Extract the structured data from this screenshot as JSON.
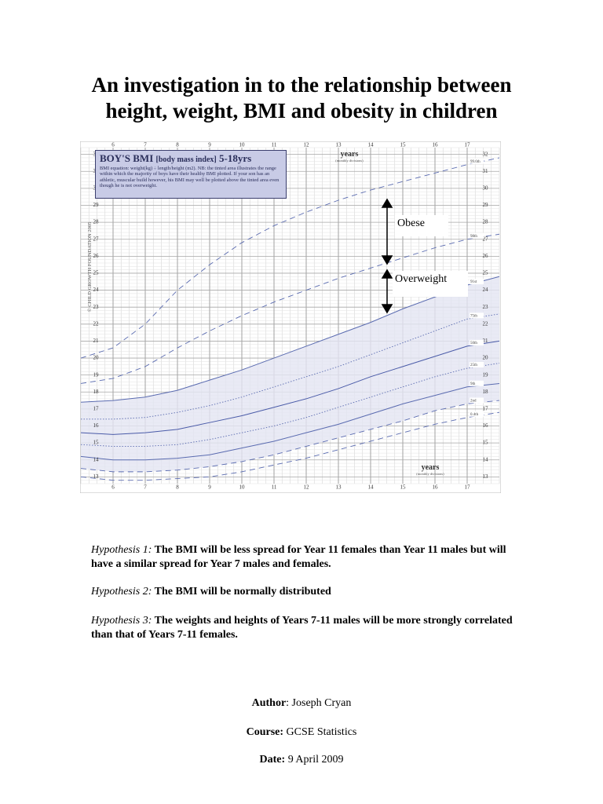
{
  "header": {
    "title": [
      "An investigation in to the relationship between",
      "height, weight, BMI and obesity in children"
    ]
  },
  "chart_data": {
    "type": "line",
    "info_title": "BOY'S BMI",
    "info_title_small": "[body mass index]",
    "info_title_range": "5-18yrs",
    "info_text": "BMI equation: weight(kg) ÷ length/height (m2). NB: the tinted area illustrates the range within which the majority of boys have their healthy BMI plotted. If your son has an athletic, muscular build however, his BMI may well be plotted above the tinted area even though he is not overweight.",
    "copyright": "© CHILD GROWTH FOUNDATION 2005",
    "xlabel": "years",
    "xlabel_note": "(monthly divisions)",
    "x": [
      5,
      6,
      7,
      8,
      9,
      10,
      11,
      12,
      13,
      14,
      15,
      16,
      17,
      18
    ],
    "xlim": [
      5,
      18
    ],
    "xticks": [
      6,
      7,
      8,
      9,
      10,
      11,
      12,
      13,
      14,
      15,
      16,
      17
    ],
    "ylim": [
      12.6,
      32.4
    ],
    "yticks": [
      13,
      14,
      15,
      16,
      17,
      18,
      19,
      20,
      21,
      22,
      23,
      24,
      25,
      26,
      27,
      28,
      29,
      30,
      31,
      32
    ],
    "grid": true,
    "shade_between": [
      "2nd",
      "91st"
    ],
    "shade_color": "#e3e5f3",
    "series": [
      {
        "name": "99.6th",
        "color": "#5a6bb0",
        "style": "dashed",
        "values": [
          20.0,
          20.6,
          22.0,
          24.0,
          25.5,
          26.8,
          27.8,
          28.6,
          29.3,
          29.9,
          30.4,
          30.9,
          31.4,
          31.8
        ]
      },
      {
        "name": "98th",
        "color": "#5a6bb0",
        "style": "dashed",
        "values": [
          18.5,
          18.8,
          19.5,
          20.6,
          21.6,
          22.5,
          23.3,
          24.0,
          24.7,
          25.3,
          25.9,
          26.5,
          27.0,
          27.3
        ]
      },
      {
        "name": "91st",
        "color": "#5a6bb0",
        "style": "solid",
        "values": [
          17.4,
          17.5,
          17.7,
          18.1,
          18.7,
          19.3,
          20.0,
          20.7,
          21.4,
          22.1,
          22.9,
          23.6,
          24.3,
          24.8
        ]
      },
      {
        "name": "75th",
        "color": "#5a6bb0",
        "style": "dotted",
        "values": [
          16.4,
          16.4,
          16.5,
          16.8,
          17.2,
          17.7,
          18.3,
          18.9,
          19.5,
          20.2,
          20.9,
          21.6,
          22.3,
          22.6
        ]
      },
      {
        "name": "50th",
        "color": "#4a5ba8",
        "style": "solid",
        "values": [
          15.6,
          15.5,
          15.6,
          15.8,
          16.2,
          16.6,
          17.1,
          17.6,
          18.2,
          18.9,
          19.5,
          20.1,
          20.7,
          21.0
        ]
      },
      {
        "name": "25th",
        "color": "#5a6bb0",
        "style": "dotted",
        "values": [
          14.9,
          14.8,
          14.8,
          14.9,
          15.2,
          15.6,
          16.0,
          16.5,
          17.1,
          17.7,
          18.3,
          18.9,
          19.4,
          19.7
        ]
      },
      {
        "name": "9th",
        "color": "#5a6bb0",
        "style": "solid",
        "values": [
          14.2,
          14.0,
          14.0,
          14.1,
          14.3,
          14.7,
          15.1,
          15.6,
          16.1,
          16.7,
          17.3,
          17.8,
          18.3,
          18.5
        ]
      },
      {
        "name": "2nd",
        "color": "#5a6bb0",
        "style": "dashed",
        "values": [
          13.5,
          13.3,
          13.3,
          13.4,
          13.6,
          13.9,
          14.3,
          14.8,
          15.3,
          15.8,
          16.3,
          16.9,
          17.3,
          17.5
        ]
      },
      {
        "name": "0.4th",
        "color": "#5a6bb0",
        "style": "dashed",
        "values": [
          13.0,
          12.8,
          12.8,
          12.9,
          13.0,
          13.3,
          13.7,
          14.1,
          14.6,
          15.1,
          15.6,
          16.1,
          16.5,
          16.8
        ]
      }
    ],
    "annotations": [
      "Obese",
      "Overweight"
    ]
  },
  "hypotheses": [
    {
      "label": "Hypothesis 1:",
      "text": "The BMI will be less spread for Year 11 females than Year 11 males but will have a similar spread for Year 7 males and females."
    },
    {
      "label": "Hypothesis 2",
      "sep": ":",
      "text": "The BMI will be normally distributed"
    },
    {
      "label": "Hypothesis 3:",
      "text": "The weights and heights of Years 7-11 males will be more strongly correlated than that of Years 7-11 females."
    }
  ],
  "meta": [
    {
      "label": "Author",
      "value": ": Joseph Cryan"
    },
    {
      "label": "Course:",
      "value": "GCSE Statistics"
    },
    {
      "label": "Date:",
      "value": "9 April 2009"
    }
  ]
}
